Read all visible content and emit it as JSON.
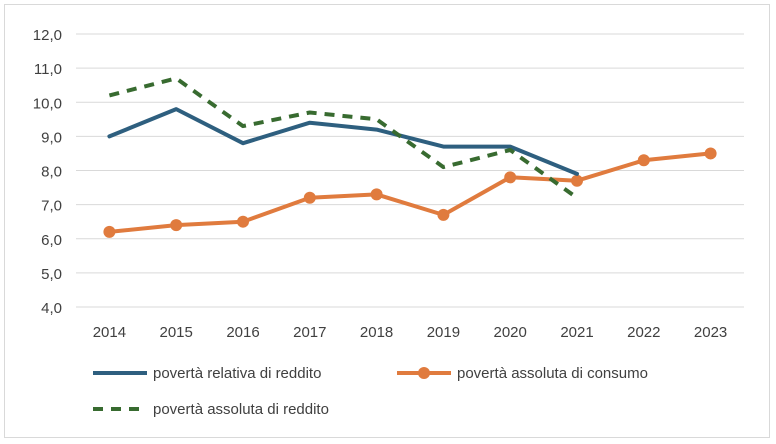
{
  "chart_data": {
    "type": "line",
    "title": "",
    "xlabel": "",
    "ylabel": "",
    "categories": [
      "2014",
      "2015",
      "2016",
      "2017",
      "2018",
      "2019",
      "2020",
      "2021",
      "2022",
      "2023"
    ],
    "ylim": [
      4.0,
      12.0
    ],
    "yticks": [
      "4,0",
      "5,0",
      "6,0",
      "7,0",
      "8,0",
      "9,0",
      "10,0",
      "11,0",
      "12,0"
    ],
    "grid": true,
    "legend_position": "bottom",
    "series": [
      {
        "name": "povertà relativa di reddito",
        "color": "#2e5f7f",
        "style": "solid",
        "markers": false,
        "values": [
          9.0,
          9.8,
          8.8,
          9.4,
          9.2,
          8.7,
          8.7,
          7.9,
          null,
          null
        ]
      },
      {
        "name": "povertà assoluta di consumo",
        "color": "#e07b3e",
        "style": "solid",
        "markers": true,
        "values": [
          6.2,
          6.4,
          6.5,
          7.2,
          7.3,
          6.7,
          7.8,
          7.7,
          8.3,
          8.5
        ]
      },
      {
        "name": "povertà assoluta di reddito",
        "color": "#386b30",
        "style": "dashed",
        "markers": false,
        "values": [
          10.2,
          10.7,
          9.3,
          9.7,
          9.5,
          8.1,
          8.6,
          7.2,
          null,
          null
        ]
      }
    ]
  }
}
